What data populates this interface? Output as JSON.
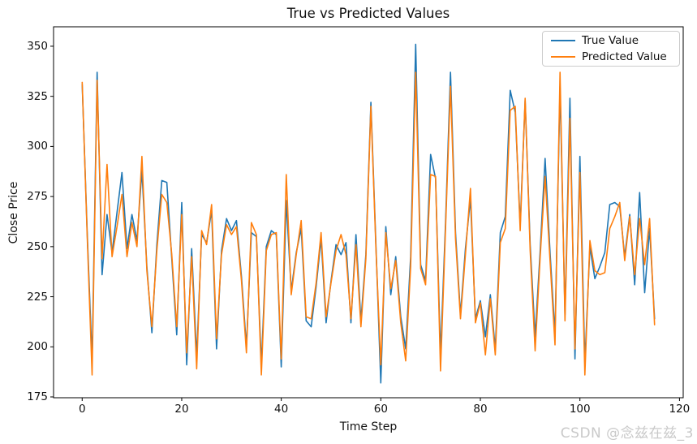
{
  "title": "True vs Predicted Values",
  "watermark": "CSDN @念兹在兹_3",
  "colors": {
    "true_series": "#1f77b4",
    "predicted_series": "#ff7f0e",
    "axes": "#000000",
    "watermark": "#c9c9c9"
  },
  "chart_data": {
    "type": "line",
    "title": "True vs Predicted Values",
    "xlabel": "Time Step",
    "ylabel": "Close Price",
    "n_points": 116,
    "x_start": 0,
    "x_step": 1,
    "xlim": [
      -5.75,
      120.75
    ],
    "ylim": [
      174.6,
      359.7
    ],
    "xticks": [
      0,
      20,
      40,
      60,
      80,
      100,
      120
    ],
    "yticks": [
      175,
      200,
      225,
      250,
      275,
      300,
      325,
      350
    ],
    "grid": false,
    "legend_position": "upper right",
    "series": [
      {
        "name": "True Value",
        "color": "#1f77b4",
        "values": [
          331,
          258,
          193,
          337,
          236,
          266,
          247,
          267,
          287,
          249,
          266,
          253,
          288,
          240,
          207,
          251,
          283,
          282,
          244,
          206,
          272,
          191,
          249,
          195,
          256,
          252,
          268,
          199,
          248,
          264,
          258,
          263,
          235,
          200,
          257,
          255,
          191,
          250,
          258,
          256,
          190,
          273,
          228,
          247,
          259,
          213,
          210,
          230,
          254,
          212,
          233,
          251,
          246,
          252,
          212,
          256,
          213,
          246,
          322,
          252,
          182,
          260,
          226,
          245,
          215,
          199,
          245,
          351,
          241,
          233,
          296,
          284,
          196,
          262,
          337,
          257,
          216,
          249,
          274,
          214,
          223,
          205,
          226,
          199,
          257,
          265,
          328,
          317,
          261,
          323,
          251,
          205,
          247,
          294,
          247,
          206,
          330,
          216,
          324,
          194,
          295,
          192,
          250,
          234,
          240,
          247,
          271,
          272,
          270,
          245,
          266,
          231,
          277,
          227,
          259,
          214
        ]
      },
      {
        "name": "Predicted Value",
        "color": "#ff7f0e",
        "values": [
          332,
          256,
          186,
          333,
          244,
          291,
          245,
          260,
          276,
          245,
          262,
          250,
          295,
          238,
          210,
          248,
          276,
          272,
          246,
          210,
          266,
          197,
          245,
          189,
          258,
          251,
          271,
          204,
          246,
          261,
          256,
          260,
          233,
          197,
          262,
          256,
          186,
          248,
          256,
          257,
          194,
          286,
          226,
          246,
          263,
          215,
          214,
          232,
          257,
          215,
          232,
          248,
          256,
          246,
          214,
          251,
          210,
          244,
          320,
          250,
          191,
          257,
          229,
          243,
          212,
          193,
          240,
          337,
          239,
          231,
          286,
          285,
          188,
          259,
          330,
          254,
          214,
          246,
          279,
          212,
          222,
          196,
          224,
          196,
          252,
          259,
          318,
          320,
          258,
          324,
          248,
          198,
          244,
          285,
          243,
          201,
          337,
          213,
          314,
          199,
          287,
          186,
          253,
          238,
          236,
          237,
          259,
          265,
          272,
          243,
          265,
          236,
          264,
          241,
          264,
          211
        ]
      }
    ]
  }
}
